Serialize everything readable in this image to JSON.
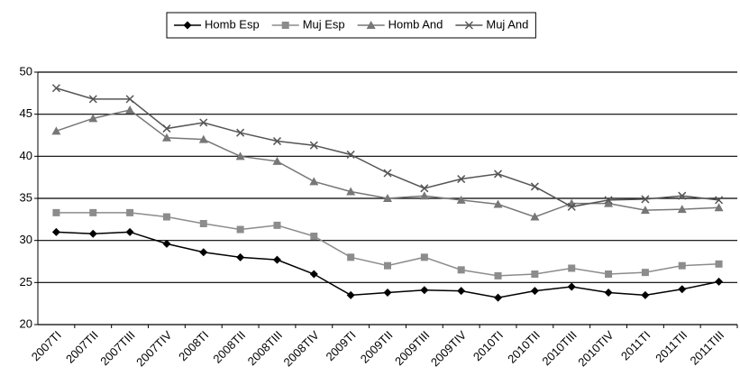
{
  "chart_data": {
    "type": "line",
    "categories": [
      "2007TI",
      "2007TII",
      "2007TIII",
      "2007TIV",
      "2008TI",
      "2008TII",
      "2008TIII",
      "2008TIV",
      "2009TI",
      "2009TII",
      "2009TIII",
      "2009TIV",
      "2010TI",
      "2010TII",
      "2010TIII",
      "2010TIV",
      "2011TI",
      "2011TII",
      "2011TIII"
    ],
    "series": [
      {
        "name": "Homb Esp",
        "color": "#000000",
        "marker": "diamond",
        "values": [
          31,
          30.8,
          31,
          29.6,
          28.6,
          28,
          27.7,
          26,
          23.5,
          23.8,
          24.1,
          24,
          23.2,
          24,
          24.5,
          23.8,
          23.5,
          24.2,
          25.1
        ]
      },
      {
        "name": "Muj Esp",
        "color": "#8c8c8c",
        "marker": "square",
        "values": [
          33.3,
          33.3,
          33.3,
          32.8,
          32,
          31.3,
          31.8,
          30.5,
          28,
          27,
          28,
          26.5,
          25.8,
          26,
          26.7,
          26,
          26.2,
          27,
          27.2
        ]
      },
      {
        "name": "Homb And",
        "color": "#777777",
        "marker": "triangle",
        "values": [
          43,
          44.5,
          45.5,
          42.2,
          42,
          40,
          39.4,
          37,
          35.8,
          35,
          35.3,
          34.8,
          34.3,
          32.8,
          34.4,
          34.4,
          33.6,
          33.7,
          33.9
        ]
      },
      {
        "name": "Muj And",
        "color": "#555555",
        "marker": "x",
        "values": [
          48.1,
          46.8,
          46.8,
          43.3,
          44,
          42.8,
          41.8,
          41.3,
          40.2,
          38,
          36.2,
          37.3,
          37.9,
          36.4,
          34,
          34.8,
          34.9,
          35.3,
          34.8
        ]
      }
    ],
    "ylim": [
      20,
      50
    ],
    "yticks": [
      20,
      25,
      30,
      35,
      40,
      45,
      50
    ],
    "grid": true,
    "legend": "top"
  }
}
